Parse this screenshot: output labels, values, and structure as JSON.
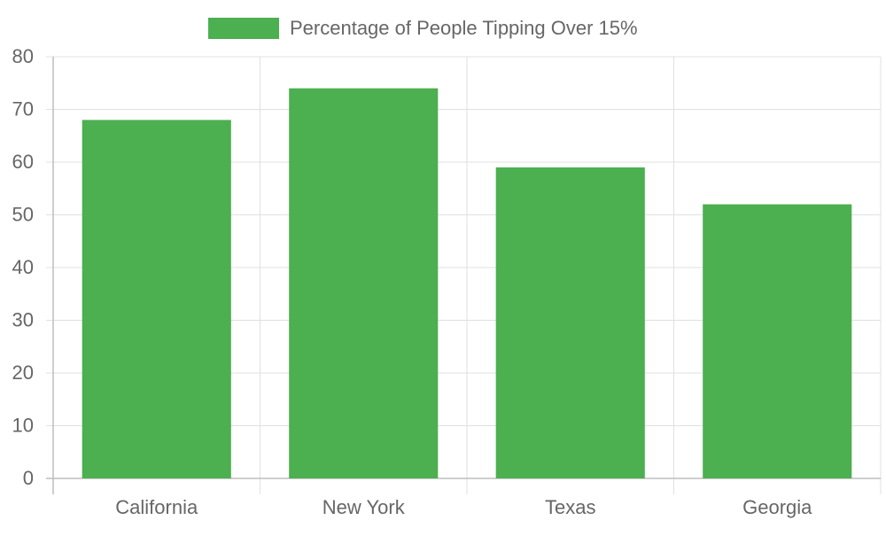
{
  "chart_data": {
    "type": "bar",
    "categories": [
      "California",
      "New York",
      "Texas",
      "Georgia"
    ],
    "series": [
      {
        "name": "Percentage of People Tipping Over 15%",
        "color": "#4caf50",
        "values": [
          68,
          74,
          59,
          52
        ]
      }
    ],
    "ylim": [
      0,
      80
    ],
    "yticks": [
      0,
      10,
      20,
      30,
      40,
      50,
      60,
      70,
      80
    ],
    "grid": true,
    "legend": "top"
  }
}
